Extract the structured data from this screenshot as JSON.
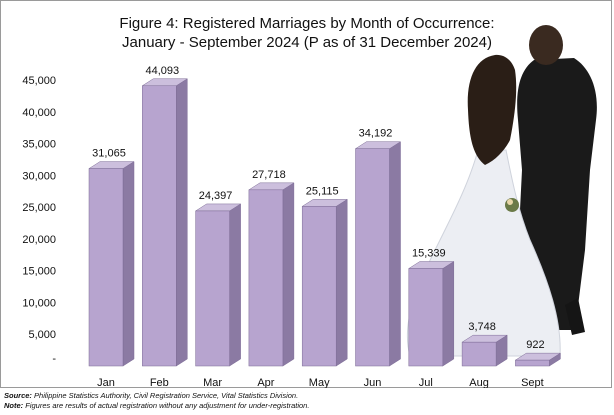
{
  "title_line1": "Figure 4: Registered Marriages by Month of Occurrence:",
  "title_line2": "January - September 2024 (P as of 31 December 2024)",
  "source_label": "Source:",
  "source_text": "Philippine Statistics Authority, Civil Registration Service, Vital Statistics Division.",
  "note_label": "Note:",
  "note_text": "Figures are results of actual registration without any adjustment for under-registration.",
  "colors": {
    "bar_front": "#b7a4cf",
    "bar_top": "#ccbfdd",
    "bar_side": "#8b7aa3",
    "bar_outline": "#7d6c96"
  },
  "chart_data": {
    "type": "bar",
    "categories": [
      "Jan",
      "Feb",
      "Mar",
      "Apr",
      "May",
      "Jun",
      "Jul",
      "Aug",
      "Sept"
    ],
    "values": [
      31065,
      44093,
      24397,
      27718,
      25115,
      34192,
      15339,
      3748,
      922
    ],
    "value_labels": [
      "31,065",
      "44,093",
      "24,397",
      "27,718",
      "25,115",
      "34,192",
      "15,339",
      "3,748",
      "922"
    ],
    "yticks": [
      "-",
      "5,000",
      "10,000",
      "15,000",
      "20,000",
      "25,000",
      "30,000",
      "35,000",
      "40,000",
      "45,000"
    ],
    "ylim": [
      0,
      45000
    ],
    "grid": false,
    "legend": "none",
    "three_d": true
  }
}
